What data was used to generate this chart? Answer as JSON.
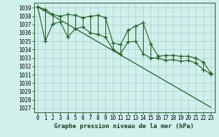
{
  "title": "Graphe pression niveau de la mer (hPa)",
  "bg_color": "#d0f0ec",
  "grid_color": "#aacccc",
  "line_color": "#1a5c1a",
  "y_ticks": [
    1027,
    1028,
    1029,
    1030,
    1031,
    1032,
    1033,
    1034,
    1035,
    1036,
    1037,
    1038,
    1039
  ],
  "ylim": [
    1026.5,
    1039.6
  ],
  "xlim": [
    -0.5,
    23.5
  ],
  "upper": [
    1039.1,
    1038.8,
    1038.2,
    1038.0,
    1038.2,
    1038.1,
    1037.8,
    1038.0,
    1038.1,
    1037.8,
    1034.8,
    1034.6,
    1036.3,
    1036.8,
    1037.2,
    1034.7,
    1033.2,
    1033.3,
    1033.3,
    1033.2,
    1033.2,
    1033.0,
    1032.5,
    1031.2
  ],
  "lower": [
    1039.1,
    1035.0,
    1037.1,
    1037.3,
    1035.5,
    1036.5,
    1036.7,
    1036.0,
    1035.8,
    1035.5,
    1034.0,
    1033.5,
    1034.9,
    1035.0,
    1033.5,
    1033.0,
    1033.0,
    1032.7,
    1032.8,
    1032.6,
    1032.7,
    1032.4,
    1031.6,
    1031.1
  ],
  "trend_x": [
    0,
    23
  ],
  "trend_y": [
    1039.1,
    1027.1
  ],
  "tick_fontsize": 5.5,
  "label_fontsize": 6.5
}
